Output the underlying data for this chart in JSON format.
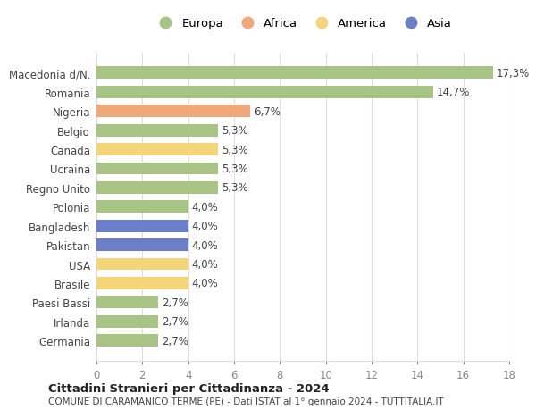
{
  "countries": [
    "Germania",
    "Irlanda",
    "Paesi Bassi",
    "Brasile",
    "USA",
    "Pakistan",
    "Bangladesh",
    "Polonia",
    "Regno Unito",
    "Ucraina",
    "Canada",
    "Belgio",
    "Nigeria",
    "Romania",
    "Macedonia d/N."
  ],
  "values": [
    2.7,
    2.7,
    2.7,
    4.0,
    4.0,
    4.0,
    4.0,
    4.0,
    5.3,
    5.3,
    5.3,
    5.3,
    6.7,
    14.7,
    17.3
  ],
  "labels": [
    "2,7%",
    "2,7%",
    "2,7%",
    "4,0%",
    "4,0%",
    "4,0%",
    "4,0%",
    "4,0%",
    "5,3%",
    "5,3%",
    "5,3%",
    "5,3%",
    "6,7%",
    "14,7%",
    "17,3%"
  ],
  "colors": [
    "#a8c484",
    "#a8c484",
    "#a8c484",
    "#f5d57a",
    "#f5d57a",
    "#6b7ec7",
    "#6b7ec7",
    "#a8c484",
    "#a8c484",
    "#a8c484",
    "#f5d57a",
    "#a8c484",
    "#f0a87a",
    "#a8c484",
    "#a8c484"
  ],
  "legend_labels": [
    "Europa",
    "Africa",
    "America",
    "Asia"
  ],
  "legend_colors": [
    "#a8c484",
    "#f0a87a",
    "#f5d57a",
    "#6b7ec7"
  ],
  "xlim": [
    0,
    18
  ],
  "xticks": [
    0,
    2,
    4,
    6,
    8,
    10,
    12,
    14,
    16,
    18
  ],
  "title1": "Cittadini Stranieri per Cittadinanza - 2024",
  "title2": "COMUNE DI CARAMANICO TERME (PE) - Dati ISTAT al 1° gennaio 2024 - TUTTITALIA.IT",
  "bg_color": "#ffffff",
  "bar_height": 0.65,
  "grid_color": "#dddddd",
  "label_fontsize": 8.5,
  "tick_fontsize": 8.5
}
